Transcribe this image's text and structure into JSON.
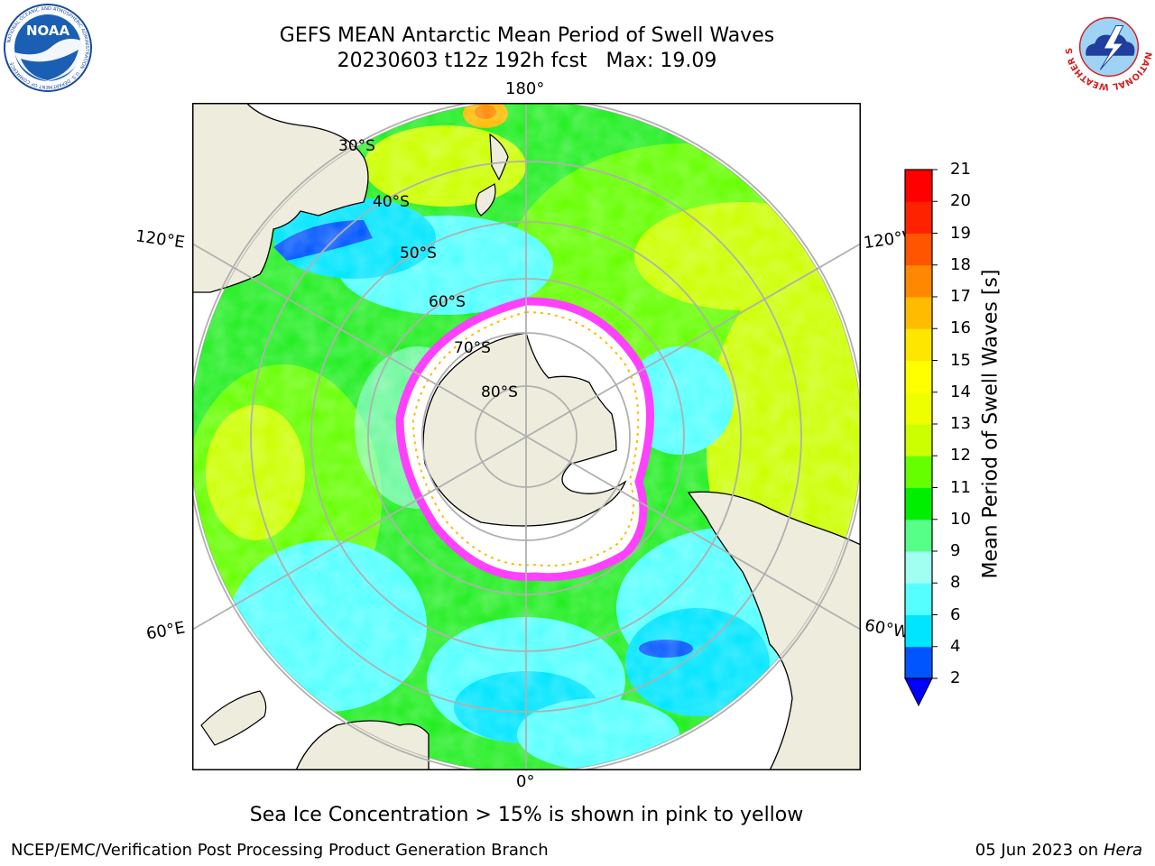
{
  "title": {
    "line1": "GEFS MEAN Antarctic Mean Period of Swell Waves",
    "line2": "20230603 t12z 192h fcst   Max: 19.09"
  },
  "logos": {
    "noaa_text": "NOAA",
    "noaa_ring": "NATIONAL OCEANIC AND ATMOSPHERIC ADMINISTRATION · U.S. DEPARTMENT OF COMMERCE",
    "nws_ring": "NATIONAL WEATHER SERVICE"
  },
  "map": {
    "longitude_labels": {
      "top": "180°",
      "bottom": "0°",
      "upper_left": "120°E",
      "upper_right": "120°W",
      "lower_left": "60°E",
      "lower_right": "60°W"
    },
    "latitude_labels": [
      "30°S",
      "40°S",
      "50°S",
      "60°S",
      "70°S",
      "80°S"
    ],
    "colors": {
      "land": "#eeecdc",
      "graticule": "#b0b0b0",
      "sea_ice": "#ff40ff",
      "ice_interior": "#ffffff"
    }
  },
  "colorbar": {
    "label": "Mean Period of Swell Waves [s]",
    "ticks": [
      "2",
      "4",
      "6",
      "8",
      "9",
      "10",
      "11",
      "12",
      "13",
      "14",
      "15",
      "16",
      "17",
      "18",
      "19",
      "20",
      "21"
    ],
    "colors": [
      "#0055ff",
      "#00e5ff",
      "#55ffff",
      "#a0fff0",
      "#55ff88",
      "#00ee00",
      "#66ff00",
      "#ccff00",
      "#eeff00",
      "#ffff00",
      "#ffe600",
      "#ffbb00",
      "#ff8800",
      "#ff5500",
      "#ff2200",
      "#ff0000"
    ],
    "extend_color": "#0000ff"
  },
  "note": "Sea Ice Concentration > 15% is shown in pink to yellow",
  "footer": {
    "left": "NCEP/EMC/Verification Post Processing Product Generation Branch",
    "right_date": "05 Jun 2023 on",
    "right_machine": "Hera"
  }
}
